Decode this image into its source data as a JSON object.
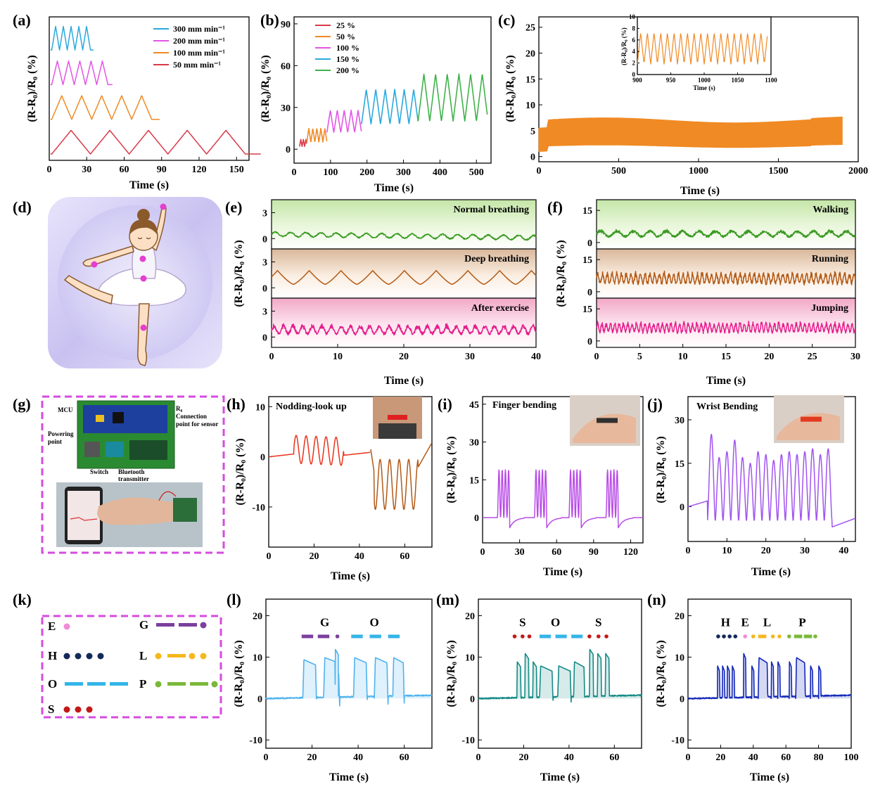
{
  "panels": {
    "a": {
      "letter": "(a)",
      "ylabel": "(R-R₀)/R₀ (%)",
      "xlabel": "Time (s)"
    },
    "b": {
      "letter": "(b)",
      "ylabel": "(R-R₀)/R₀ (%)",
      "xlabel": "Time (s)"
    },
    "c": {
      "letter": "(c)",
      "ylabel": "(R-R₀)/R₀ (%)",
      "xlabel": "Time (s)",
      "inset_ylabel": "(R-R₀)/R₀ (%)",
      "inset_xlabel": "Time (s)"
    },
    "d": {
      "letter": "(d)"
    },
    "e": {
      "letter": "(e)",
      "ylabel": "(R-R₀)/R₀ (%)",
      "xlabel": "Time (s)"
    },
    "f": {
      "letter": "(f)",
      "ylabel": "(R-R₀)/R₀ (%)",
      "xlabel": "Time (s)"
    },
    "g": {
      "letter": "(g)",
      "labels": {
        "mcu": "MCU",
        "r0": "R₀",
        "connection": "Connection",
        "point_for_sensor": "point for sensor",
        "powering": "Powering",
        "point": "point",
        "switch": "Switch",
        "bluetooth": "Bluetooth",
        "transmitter": "transmitter"
      }
    },
    "h": {
      "letter": "(h)",
      "ylabel": "(R-R₀)/R₀ (%)",
      "xlabel": "Time (s)",
      "annotation": "Nodding-look up"
    },
    "i": {
      "letter": "(i)",
      "ylabel": "(R-R₀)/R₀ (%)",
      "xlabel": "Time (s)",
      "annotation": "Finger bending"
    },
    "j": {
      "letter": "(j)",
      "ylabel": "(R-R₀)/R₀ (%)",
      "xlabel": "Time (s)",
      "annotation": "Wrist Bending"
    },
    "k": {
      "letter": "(k)"
    },
    "l": {
      "letter": "(l)",
      "ylabel": "(R-R₀)/R₀ (%)",
      "xlabel": "Time (s)"
    },
    "m": {
      "letter": "(m)",
      "ylabel": "(R-R₀)/R₀ (%)",
      "xlabel": "Time (s)"
    },
    "n": {
      "letter": "(n)",
      "ylabel": "(R-R₀)/R₀ (%)",
      "xlabel": "Time (s)"
    }
  },
  "colors": {
    "c300": "#29a9dd",
    "c200": "#e455e6",
    "c100": "#f08a24",
    "c50": "#d93a48",
    "green": "#3a9a22",
    "brown": "#b25a16",
    "pink": "#e61e8c",
    "red": "#e8331a",
    "violet": "#b84ce6",
    "purple": "#a154f0",
    "lightblue": "#4fb3ee",
    "teal": "#178b86",
    "navy": "#1428b8",
    "morseE": "#f08ad8",
    "morseG": "#7b3f9e",
    "morseH": "#14285a",
    "morseO": "#33b5e8",
    "morseL": "#f5b81d",
    "morseP": "#7bb83a",
    "morseS": "#c41818"
  },
  "chart_data": [
    {
      "id": "a",
      "type": "line",
      "xlim": [
        0,
        160
      ],
      "xticks": [
        0,
        30,
        60,
        90,
        120,
        150
      ],
      "series": [
        {
          "name": "300 mm min⁻¹",
          "color": "#29a9dd",
          "period": 6.2,
          "cycles": 5,
          "start": 2,
          "offset": 3.3,
          "amp": 0.75
        },
        {
          "name": "200 mm min⁻¹",
          "color": "#e455e6",
          "period": 9,
          "cycles": 5,
          "start": 2,
          "offset": 2.2,
          "amp": 0.75
        },
        {
          "name": "100 mm min⁻¹",
          "color": "#f08a24",
          "period": 16,
          "cycles": 5,
          "start": 2,
          "offset": 1.1,
          "amp": 0.75
        },
        {
          "name": "50 mm min⁻¹",
          "color": "#d93a48",
          "period": 31,
          "cycles": 5,
          "start": 2,
          "offset": 0.0,
          "amp": 0.75
        }
      ]
    },
    {
      "id": "b",
      "type": "line",
      "xlim": [
        0,
        540
      ],
      "ylim": [
        -10,
        95
      ],
      "yticks": [
        0,
        30,
        60,
        90
      ],
      "xticks": [
        0,
        100,
        200,
        300,
        400,
        500
      ],
      "series": [
        {
          "name": "25 %",
          "color": "#d93a48",
          "t0": 15,
          "t1": 35,
          "period": 7,
          "base": 2,
          "amp": 5
        },
        {
          "name": "50 %",
          "color": "#f08a24",
          "t0": 35,
          "t1": 90,
          "period": 11,
          "base": 5,
          "amp": 10
        },
        {
          "name": "100 %",
          "color": "#e455e6",
          "t0": 90,
          "t1": 185,
          "period": 19,
          "base": 12,
          "amp": 16
        },
        {
          "name": "150 %",
          "color": "#29a9dd",
          "t0": 185,
          "t1": 340,
          "period": 26,
          "base": 18,
          "amp": 25
        },
        {
          "name": "200 %",
          "color": "#3fb24a",
          "t0": 340,
          "t1": 530,
          "period": 32,
          "base": 20,
          "amp": 34
        }
      ]
    },
    {
      "id": "c",
      "type": "line",
      "xlim": [
        0,
        2000
      ],
      "ylim": [
        -1,
        27
      ],
      "yticks": [
        0,
        5,
        10,
        15,
        20,
        25
      ],
      "xticks": [
        0,
        500,
        1000,
        1500,
        2000
      ],
      "series": [
        {
          "color": "#f08a24",
          "base": 2,
          "top": 7
        }
      ],
      "inset": {
        "xlim": [
          900,
          1100
        ],
        "ylim": [
          0,
          10
        ],
        "xticks": [
          900,
          950,
          1000,
          1050,
          1100
        ],
        "yticks": [
          0,
          2,
          4,
          6,
          8,
          10
        ],
        "period": 10,
        "min": 1.8,
        "max": 7.3
      }
    },
    {
      "id": "e",
      "type": "line",
      "xlim": [
        0,
        40
      ],
      "xticks": [
        0,
        10,
        20,
        30,
        40
      ],
      "yticks": [
        0,
        3
      ],
      "sub": [
        {
          "label": "Normal breathing",
          "color": "#3a9a22",
          "period": 2.3,
          "amp": 0.25,
          "bg": [
            "#eaf7dc",
            "#c4e6a8"
          ]
        },
        {
          "label": "Deep breathing",
          "color": "#b25a16",
          "period": 4.8,
          "amp": 1.6,
          "bg": [
            "#fbeee2",
            "#d9b79a"
          ]
        },
        {
          "label": "After exercise",
          "color": "#e61e8c",
          "period": 1.45,
          "amp": 1.0,
          "bg": [
            "#fde6ef",
            "#f2a8c6"
          ]
        }
      ]
    },
    {
      "id": "f",
      "type": "line",
      "xlim": [
        0,
        30
      ],
      "xticks": [
        0,
        5,
        10,
        15,
        20,
        25,
        30
      ],
      "yticks": [
        0,
        15
      ],
      "sub": [
        {
          "label": "Walking",
          "color": "#3a9a22",
          "period": 1.9,
          "amp": 3,
          "bg": [
            "#eaf7dc",
            "#c4e6a8"
          ]
        },
        {
          "label": "Running",
          "color": "#b25a16",
          "period": 0.55,
          "amp": 5,
          "bg": [
            "#fbeee2",
            "#d9b79a"
          ]
        },
        {
          "label": "Jumping",
          "color": "#e61e8c",
          "period": 0.5,
          "amp": 4.5,
          "bg": [
            "#fde6ef",
            "#f2a8c6"
          ]
        }
      ]
    },
    {
      "id": "h",
      "type": "line",
      "xlim": [
        0,
        72
      ],
      "ylim": [
        -18,
        12
      ],
      "xticks": [
        0,
        20,
        40,
        60
      ],
      "yticks": [
        -10,
        0,
        10
      ]
    },
    {
      "id": "i",
      "type": "line",
      "xlim": [
        0,
        130
      ],
      "ylim": [
        -10,
        48
      ],
      "xticks": [
        0,
        30,
        60,
        90,
        120
      ],
      "yticks": [
        0,
        15,
        30,
        45
      ]
    },
    {
      "id": "j",
      "type": "line",
      "xlim": [
        0,
        43
      ],
      "ylim": [
        -12,
        38
      ],
      "xticks": [
        0,
        10,
        20,
        30,
        40
      ],
      "yticks": [
        0,
        15,
        30
      ]
    },
    {
      "id": "l",
      "type": "line",
      "xlim": [
        0,
        72
      ],
      "ylim": [
        -12,
        24
      ],
      "xticks": [
        0,
        20,
        40,
        60
      ],
      "yticks": [
        -10,
        0,
        10,
        20
      ],
      "letters": [
        "G",
        "O"
      ]
    },
    {
      "id": "m",
      "type": "line",
      "xlim": [
        0,
        72
      ],
      "ylim": [
        -12,
        24
      ],
      "xticks": [
        0,
        20,
        40,
        60
      ],
      "yticks": [
        -10,
        0,
        10,
        20
      ],
      "letters": [
        "S",
        "O",
        "S"
      ]
    },
    {
      "id": "n",
      "type": "line",
      "xlim": [
        0,
        100
      ],
      "ylim": [
        -12,
        24
      ],
      "xticks": [
        0,
        20,
        40,
        60,
        80,
        100
      ],
      "yticks": [
        -10,
        0,
        10,
        20
      ],
      "letters": [
        "H",
        "E",
        "L",
        "P"
      ]
    }
  ],
  "morse_legend": [
    {
      "letter": "E",
      "code": "."
    },
    {
      "letter": "H",
      "code": "...."
    },
    {
      "letter": "O",
      "code": "---"
    },
    {
      "letter": "S",
      "code": "..."
    },
    {
      "letter": "G",
      "code": "--."
    },
    {
      "letter": "L",
      "code": ".-.."
    },
    {
      "letter": "P",
      "code": ".--."
    }
  ]
}
